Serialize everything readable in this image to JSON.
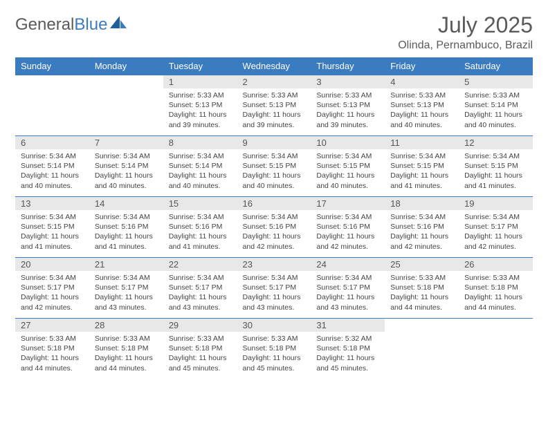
{
  "logo": {
    "text1": "General",
    "text2": "Blue"
  },
  "title": "July 2025",
  "location": "Olinda, Pernambuco, Brazil",
  "colors": {
    "header_bg": "#3b7bbf",
    "header_fg": "#ffffff",
    "daynum_bg": "#e8e8e8",
    "rule": "#3b7bbf",
    "text": "#444444",
    "title_color": "#5a5a5a"
  },
  "weekdays": [
    "Sunday",
    "Monday",
    "Tuesday",
    "Wednesday",
    "Thursday",
    "Friday",
    "Saturday"
  ],
  "weeks": [
    [
      {
        "n": "",
        "lines": []
      },
      {
        "n": "",
        "lines": []
      },
      {
        "n": "1",
        "lines": [
          "Sunrise: 5:33 AM",
          "Sunset: 5:13 PM",
          "Daylight: 11 hours and 39 minutes."
        ]
      },
      {
        "n": "2",
        "lines": [
          "Sunrise: 5:33 AM",
          "Sunset: 5:13 PM",
          "Daylight: 11 hours and 39 minutes."
        ]
      },
      {
        "n": "3",
        "lines": [
          "Sunrise: 5:33 AM",
          "Sunset: 5:13 PM",
          "Daylight: 11 hours and 39 minutes."
        ]
      },
      {
        "n": "4",
        "lines": [
          "Sunrise: 5:33 AM",
          "Sunset: 5:13 PM",
          "Daylight: 11 hours and 40 minutes."
        ]
      },
      {
        "n": "5",
        "lines": [
          "Sunrise: 5:33 AM",
          "Sunset: 5:14 PM",
          "Daylight: 11 hours and 40 minutes."
        ]
      }
    ],
    [
      {
        "n": "6",
        "lines": [
          "Sunrise: 5:34 AM",
          "Sunset: 5:14 PM",
          "Daylight: 11 hours and 40 minutes."
        ]
      },
      {
        "n": "7",
        "lines": [
          "Sunrise: 5:34 AM",
          "Sunset: 5:14 PM",
          "Daylight: 11 hours and 40 minutes."
        ]
      },
      {
        "n": "8",
        "lines": [
          "Sunrise: 5:34 AM",
          "Sunset: 5:14 PM",
          "Daylight: 11 hours and 40 minutes."
        ]
      },
      {
        "n": "9",
        "lines": [
          "Sunrise: 5:34 AM",
          "Sunset: 5:15 PM",
          "Daylight: 11 hours and 40 minutes."
        ]
      },
      {
        "n": "10",
        "lines": [
          "Sunrise: 5:34 AM",
          "Sunset: 5:15 PM",
          "Daylight: 11 hours and 40 minutes."
        ]
      },
      {
        "n": "11",
        "lines": [
          "Sunrise: 5:34 AM",
          "Sunset: 5:15 PM",
          "Daylight: 11 hours and 41 minutes."
        ]
      },
      {
        "n": "12",
        "lines": [
          "Sunrise: 5:34 AM",
          "Sunset: 5:15 PM",
          "Daylight: 11 hours and 41 minutes."
        ]
      }
    ],
    [
      {
        "n": "13",
        "lines": [
          "Sunrise: 5:34 AM",
          "Sunset: 5:15 PM",
          "Daylight: 11 hours and 41 minutes."
        ]
      },
      {
        "n": "14",
        "lines": [
          "Sunrise: 5:34 AM",
          "Sunset: 5:16 PM",
          "Daylight: 11 hours and 41 minutes."
        ]
      },
      {
        "n": "15",
        "lines": [
          "Sunrise: 5:34 AM",
          "Sunset: 5:16 PM",
          "Daylight: 11 hours and 41 minutes."
        ]
      },
      {
        "n": "16",
        "lines": [
          "Sunrise: 5:34 AM",
          "Sunset: 5:16 PM",
          "Daylight: 11 hours and 42 minutes."
        ]
      },
      {
        "n": "17",
        "lines": [
          "Sunrise: 5:34 AM",
          "Sunset: 5:16 PM",
          "Daylight: 11 hours and 42 minutes."
        ]
      },
      {
        "n": "18",
        "lines": [
          "Sunrise: 5:34 AM",
          "Sunset: 5:16 PM",
          "Daylight: 11 hours and 42 minutes."
        ]
      },
      {
        "n": "19",
        "lines": [
          "Sunrise: 5:34 AM",
          "Sunset: 5:17 PM",
          "Daylight: 11 hours and 42 minutes."
        ]
      }
    ],
    [
      {
        "n": "20",
        "lines": [
          "Sunrise: 5:34 AM",
          "Sunset: 5:17 PM",
          "Daylight: 11 hours and 42 minutes."
        ]
      },
      {
        "n": "21",
        "lines": [
          "Sunrise: 5:34 AM",
          "Sunset: 5:17 PM",
          "Daylight: 11 hours and 43 minutes."
        ]
      },
      {
        "n": "22",
        "lines": [
          "Sunrise: 5:34 AM",
          "Sunset: 5:17 PM",
          "Daylight: 11 hours and 43 minutes."
        ]
      },
      {
        "n": "23",
        "lines": [
          "Sunrise: 5:34 AM",
          "Sunset: 5:17 PM",
          "Daylight: 11 hours and 43 minutes."
        ]
      },
      {
        "n": "24",
        "lines": [
          "Sunrise: 5:34 AM",
          "Sunset: 5:17 PM",
          "Daylight: 11 hours and 43 minutes."
        ]
      },
      {
        "n": "25",
        "lines": [
          "Sunrise: 5:33 AM",
          "Sunset: 5:18 PM",
          "Daylight: 11 hours and 44 minutes."
        ]
      },
      {
        "n": "26",
        "lines": [
          "Sunrise: 5:33 AM",
          "Sunset: 5:18 PM",
          "Daylight: 11 hours and 44 minutes."
        ]
      }
    ],
    [
      {
        "n": "27",
        "lines": [
          "Sunrise: 5:33 AM",
          "Sunset: 5:18 PM",
          "Daylight: 11 hours and 44 minutes."
        ]
      },
      {
        "n": "28",
        "lines": [
          "Sunrise: 5:33 AM",
          "Sunset: 5:18 PM",
          "Daylight: 11 hours and 44 minutes."
        ]
      },
      {
        "n": "29",
        "lines": [
          "Sunrise: 5:33 AM",
          "Sunset: 5:18 PM",
          "Daylight: 11 hours and 45 minutes."
        ]
      },
      {
        "n": "30",
        "lines": [
          "Sunrise: 5:33 AM",
          "Sunset: 5:18 PM",
          "Daylight: 11 hours and 45 minutes."
        ]
      },
      {
        "n": "31",
        "lines": [
          "Sunrise: 5:32 AM",
          "Sunset: 5:18 PM",
          "Daylight: 11 hours and 45 minutes."
        ]
      },
      {
        "n": "",
        "lines": []
      },
      {
        "n": "",
        "lines": []
      }
    ]
  ]
}
